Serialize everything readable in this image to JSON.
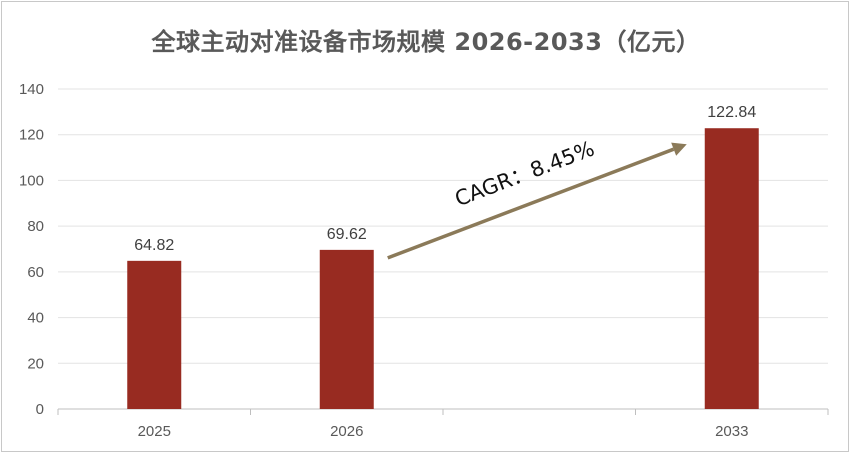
{
  "chart_data": {
    "type": "bar",
    "title": "全球主动对准设备市场规模 2026-2033（亿元）",
    "categories": [
      "2025",
      "2026",
      "",
      "2033"
    ],
    "values": [
      64.82,
      69.62,
      null,
      122.84
    ],
    "data_labels": [
      "64.82",
      "69.62",
      "",
      "122.84"
    ],
    "ylim": [
      0,
      140
    ],
    "yticks": [
      0,
      20,
      40,
      60,
      80,
      100,
      120,
      140
    ],
    "xlabel": "",
    "ylabel": "",
    "grid": true,
    "legend": "none",
    "annotation": {
      "text": "CAGR：8.45%",
      "type": "arrow",
      "from_category": "2026",
      "to_category": "2033"
    }
  },
  "colors": {
    "bar": "#982b21",
    "arrow": "#8b7a59",
    "grid": "#e3e3e3",
    "axis": "#bfbfbf"
  }
}
